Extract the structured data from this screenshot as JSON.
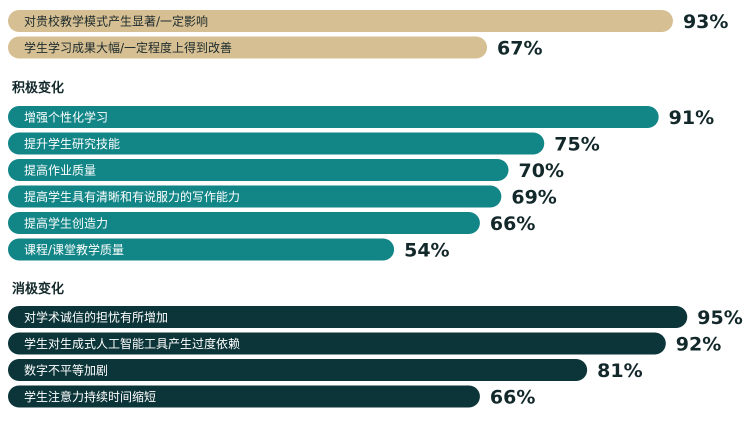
{
  "chart_data": {
    "type": "bar",
    "orientation": "horizontal",
    "value_suffix": "%",
    "xlim": [
      0,
      100
    ],
    "colors": {
      "general": "#d6bf92",
      "positive": "#128587",
      "negative": "#0c3539",
      "general_text": "#1c2a2c",
      "bar_text": "#ffffff",
      "value_text": "#13282a",
      "heading_text": "#13282a"
    },
    "groups": [
      {
        "key": "general",
        "heading": "",
        "items": [
          {
            "label": "对贵校教学模式产生显著/一定影响",
            "value": 93
          },
          {
            "label": "学生学习成果大幅/一定程度上得到改善",
            "value": 67
          }
        ]
      },
      {
        "key": "positive",
        "heading": "积极变化",
        "items": [
          {
            "label": "增强个性化学习",
            "value": 91
          },
          {
            "label": "提升学生研究技能",
            "value": 75
          },
          {
            "label": "提高作业质量",
            "value": 70
          },
          {
            "label": "提高学生具有清晰和有说服力的写作能力",
            "value": 69
          },
          {
            "label": "提高学生创造力",
            "value": 66
          },
          {
            "label": "课程/课堂教学质量",
            "value": 54
          }
        ]
      },
      {
        "key": "negative",
        "heading": "消极变化",
        "items": [
          {
            "label": "对学术诚信的担忧有所增加",
            "value": 95
          },
          {
            "label": "学生对生成式人工智能工具产生过度依赖",
            "value": 92
          },
          {
            "label": "数字不平等加剧",
            "value": 81
          },
          {
            "label": "学生注意力持续时间缩短",
            "value": 66
          }
        ]
      }
    ]
  }
}
